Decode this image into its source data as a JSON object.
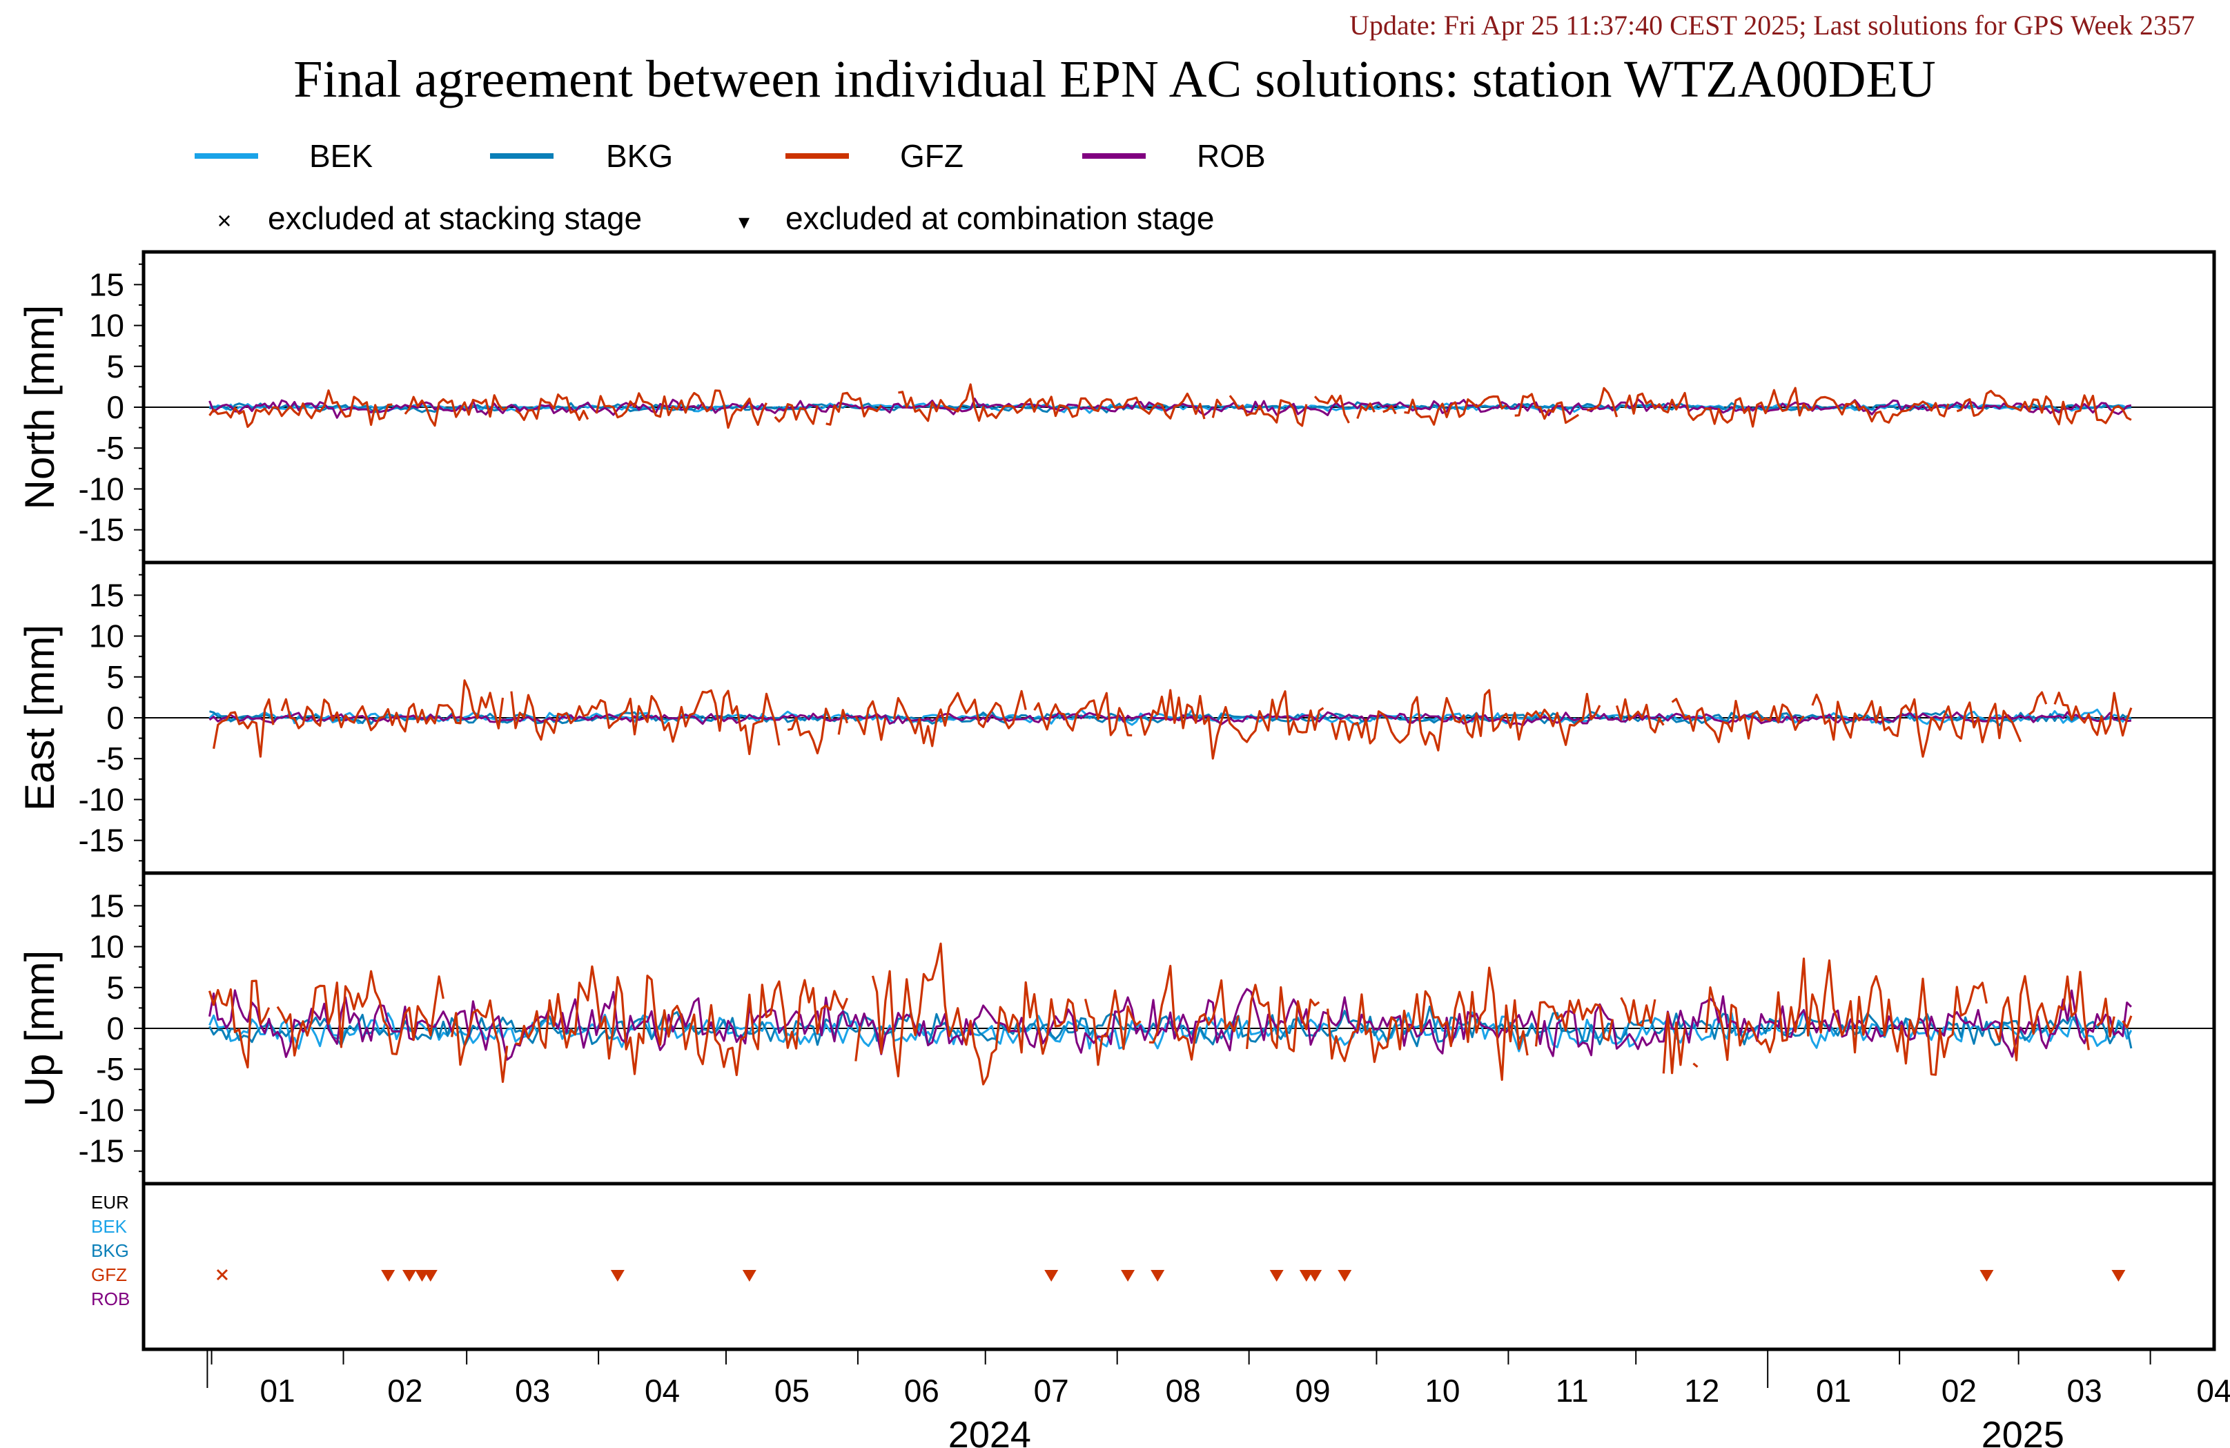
{
  "update_text": "Update: Fri Apr 25 11:37:40 CEST 2025; Last solutions for GPS Week 2357",
  "title": "Final agreement between individual EPN AC solutions: station WTZA00DEU",
  "legend": {
    "series": [
      {
        "name": "BEK",
        "color": "#1aa3e8"
      },
      {
        "name": "BKG",
        "color": "#0a7fb8"
      },
      {
        "name": "GFZ",
        "color": "#cc3300"
      },
      {
        "name": "ROB",
        "color": "#800080"
      }
    ],
    "markers": [
      {
        "symbol": "×",
        "label": "excluded at stacking stage"
      },
      {
        "symbol": "▾",
        "label": "excluded at combination stage"
      }
    ]
  },
  "chart_data": {
    "type": "line",
    "x_range": [
      "2023-12-16",
      "2025-04-16"
    ],
    "month_ticks": [
      "01",
      "02",
      "03",
      "04",
      "05",
      "06",
      "07",
      "08",
      "09",
      "10",
      "11",
      "12",
      "01",
      "02",
      "03",
      "04"
    ],
    "years": [
      "2024",
      "2025"
    ],
    "yticks": [
      "15",
      "10",
      "5",
      "0",
      "-5",
      "-10",
      "-15"
    ],
    "ylim": [
      -19,
      19
    ],
    "panels": [
      {
        "ylabel": "North [mm]",
        "amplitude": {
          "BEK": 0.2,
          "BKG": 0.2,
          "GFZ": 1.0,
          "ROB": 0.4
        },
        "note": "GFZ scatter about ±2 mm, others near 0"
      },
      {
        "ylabel": "East [mm]",
        "amplitude": {
          "BEK": 0.3,
          "BKG": 0.3,
          "GFZ": 1.6,
          "ROB": 0.3
        },
        "note": "GFZ scatter about ±4 mm, others near 0"
      },
      {
        "ylabel": "Up [mm]",
        "amplitude": {
          "BEK": 0.9,
          "BKG": 0.9,
          "GFZ": 3.0,
          "ROB": 1.5
        },
        "note": "GFZ scatter about -7..+10 mm"
      }
    ],
    "exclusion_rows": [
      "EUR",
      "BEK",
      "BKG",
      "GFZ",
      "ROB"
    ],
    "exclusions": {
      "GFZ_stacking": [
        "2024-01-03"
      ],
      "GFZ_combination": [
        "2024-02-11",
        "2024-02-16",
        "2024-02-19",
        "2024-02-21",
        "2024-04-05",
        "2024-05-06",
        "2024-07-16",
        "2024-08-03",
        "2024-08-10",
        "2024-09-07",
        "2024-09-14",
        "2024-09-16",
        "2024-09-23",
        "2025-02-21",
        "2025-03-24"
      ]
    }
  }
}
